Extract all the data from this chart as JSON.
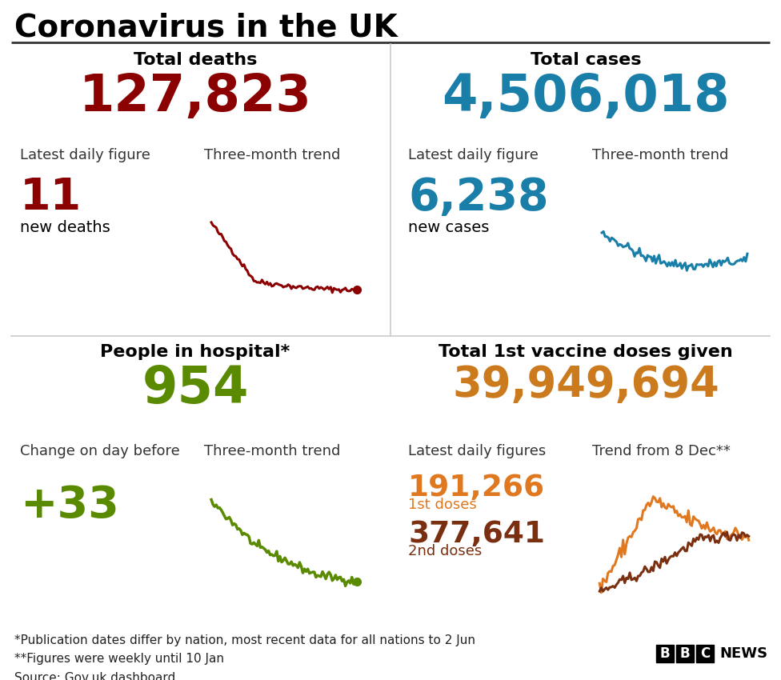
{
  "title": "Coronavirus in the UK",
  "bg_color": "#ffffff",
  "title_color": "#000000",
  "title_fontsize": 28,
  "quad_titles": [
    "Total deaths",
    "Total cases",
    "People in hospital*",
    "Total 1st vaccine doses given"
  ],
  "quad_title_color": "#000000",
  "quad_title_fontsize": 16,
  "big_numbers": [
    "127,823",
    "4,506,018",
    "954",
    "39,949,694"
  ],
  "big_number_colors": [
    "#8b0000",
    "#1a7fa8",
    "#5a8a00",
    "#cc7a1e"
  ],
  "big_number_fontsize": [
    46,
    46,
    46,
    38
  ],
  "sub_label_fontsize": 13,
  "sub_label_color": "#333333",
  "deaths_trend_color": "#8b0000",
  "cases_trend_color": "#1a7fa8",
  "hospital_trend_color": "#5a8a00",
  "vaccine_1st_color": "#e07820",
  "vaccine_2nd_color": "#7a3010",
  "footnotes": "*Publication dates differ by nation, most recent data for all nations to 2 Jun\n**Figures were weekly until 10 Jan\nSource: Gov.uk dashboard",
  "footnote_fontsize": 11,
  "footnote_color": "#222222"
}
